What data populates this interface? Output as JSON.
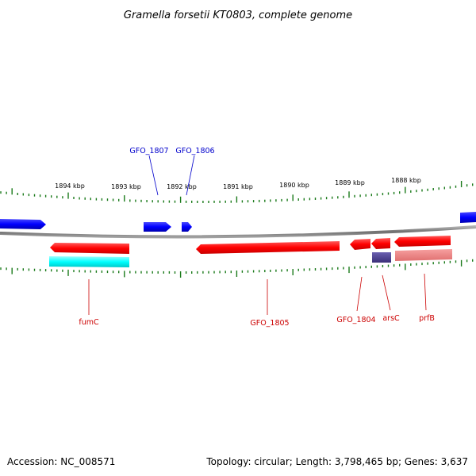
{
  "title": "Gramella forsetii KT0803, complete genome",
  "accession": "Accession: NC_008571",
  "topology": "Topology: circular; Length: 3,798,465 bp; Genes: 3,637",
  "scale_labels": [
    "1894 kbp",
    "1893 kbp",
    "1892 kbp",
    "1891 kbp",
    "1890 kbp",
    "1889 kbp",
    "1888 kbp"
  ],
  "gene_labels": {
    "gfo1807": "GFO_1807",
    "gfo1806": "GFO_1806",
    "fumc": "fumC",
    "gfo1805": "GFO_1805",
    "gfo1804": "GFO_1804",
    "arsc": "arsC",
    "prfb": "prfB"
  },
  "colors": {
    "forward": "#0000ff",
    "reverse": "#ff0000",
    "cyan_feature": "#00ffff",
    "purple_feature": "#4b3f8a",
    "pink_feature": "#f08080",
    "ticks": "#1a7a1a",
    "backbone": "#808080"
  }
}
